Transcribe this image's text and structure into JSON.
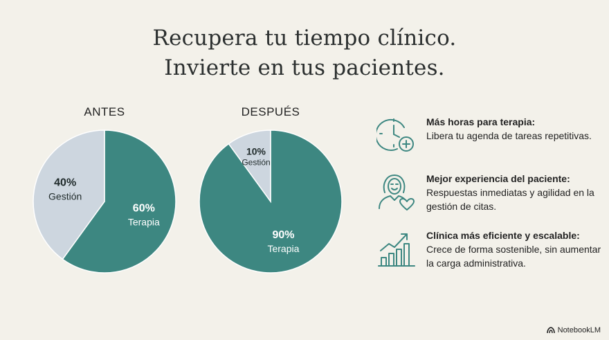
{
  "title_lines": [
    "Recupera tu tiempo clínico.",
    "Invierte en tus pacientes."
  ],
  "colors": {
    "therapy": "#3d8781",
    "management": "#cdd6df",
    "icon": "#3d8781",
    "background": "#f3f1ea"
  },
  "chart_data": [
    {
      "type": "pie",
      "title": "ANTES",
      "slices": [
        {
          "label": "Terapia",
          "value": 60,
          "value_label": "60%"
        },
        {
          "label": "Gestión",
          "value": 40,
          "value_label": "40%"
        }
      ]
    },
    {
      "type": "pie",
      "title": "DESPUÉS",
      "slices": [
        {
          "label": "Terapia",
          "value": 90,
          "value_label": "90%"
        },
        {
          "label": "Gestión",
          "value": 10,
          "value_label": "10%"
        }
      ]
    }
  ],
  "features": [
    {
      "icon": "clock-plus-icon",
      "heading": "Más horas para terapia:",
      "text": "Libera tu agenda de tareas repetitivas."
    },
    {
      "icon": "patient-heart-icon",
      "heading": "Mejor experiencia del paciente:",
      "text": "Respuestas inmediatas y agilidad en la gestión de citas."
    },
    {
      "icon": "growth-chart-icon",
      "heading": "Clínica más eficiente y escalable:",
      "text": "Crece de forma sostenible, sin aumentar la carga administrativa."
    }
  ],
  "brand": "NotebookLM"
}
